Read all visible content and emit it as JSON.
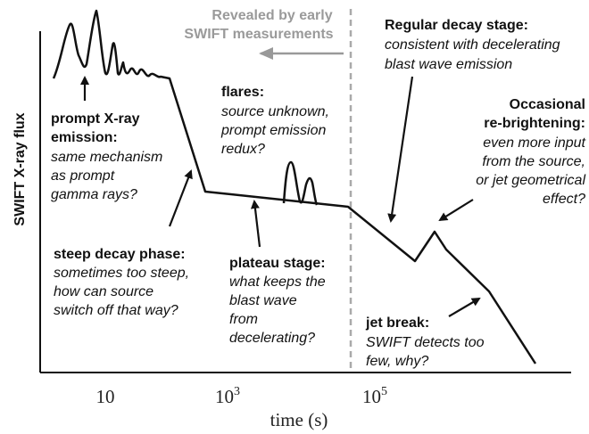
{
  "axes": {
    "y_label": "SWIFT X-ray flux",
    "x_label": "time (s)",
    "x_ticks": [
      {
        "base": "10"
      },
      {
        "base": "10",
        "exp": "3"
      },
      {
        "base": "10",
        "exp": "5"
      }
    ]
  },
  "revealed": [
    "Revealed by early",
    "SWIFT measurements"
  ],
  "annotations": [
    {
      "title": [
        "prompt X-ray",
        "emission:"
      ],
      "body": [
        "same mechanism",
        "as prompt",
        "gamma rays?"
      ]
    },
    {
      "title": [
        "flares:"
      ],
      "body": [
        "source unknown,",
        "prompt emission",
        "redux?"
      ]
    },
    {
      "title": [
        "Regular decay stage:"
      ],
      "body": [
        "consistent with decelerating",
        "blast wave emission"
      ]
    },
    {
      "title": [
        "Occasional",
        "re-brightening:"
      ],
      "body": [
        "even more input",
        "from the source,",
        "or jet geometrical",
        "effect?"
      ]
    },
    {
      "title": [
        "steep decay phase:"
      ],
      "body": [
        "sometimes too steep,",
        "how can source",
        "switch off that way?"
      ]
    },
    {
      "title": [
        "plateau stage:"
      ],
      "body": [
        "what keeps the",
        "blast wave",
        "from",
        "decelerating?"
      ]
    },
    {
      "title": [
        "jet break:"
      ],
      "body": [
        "SWIFT detects too",
        "few, why?"
      ]
    }
  ]
}
